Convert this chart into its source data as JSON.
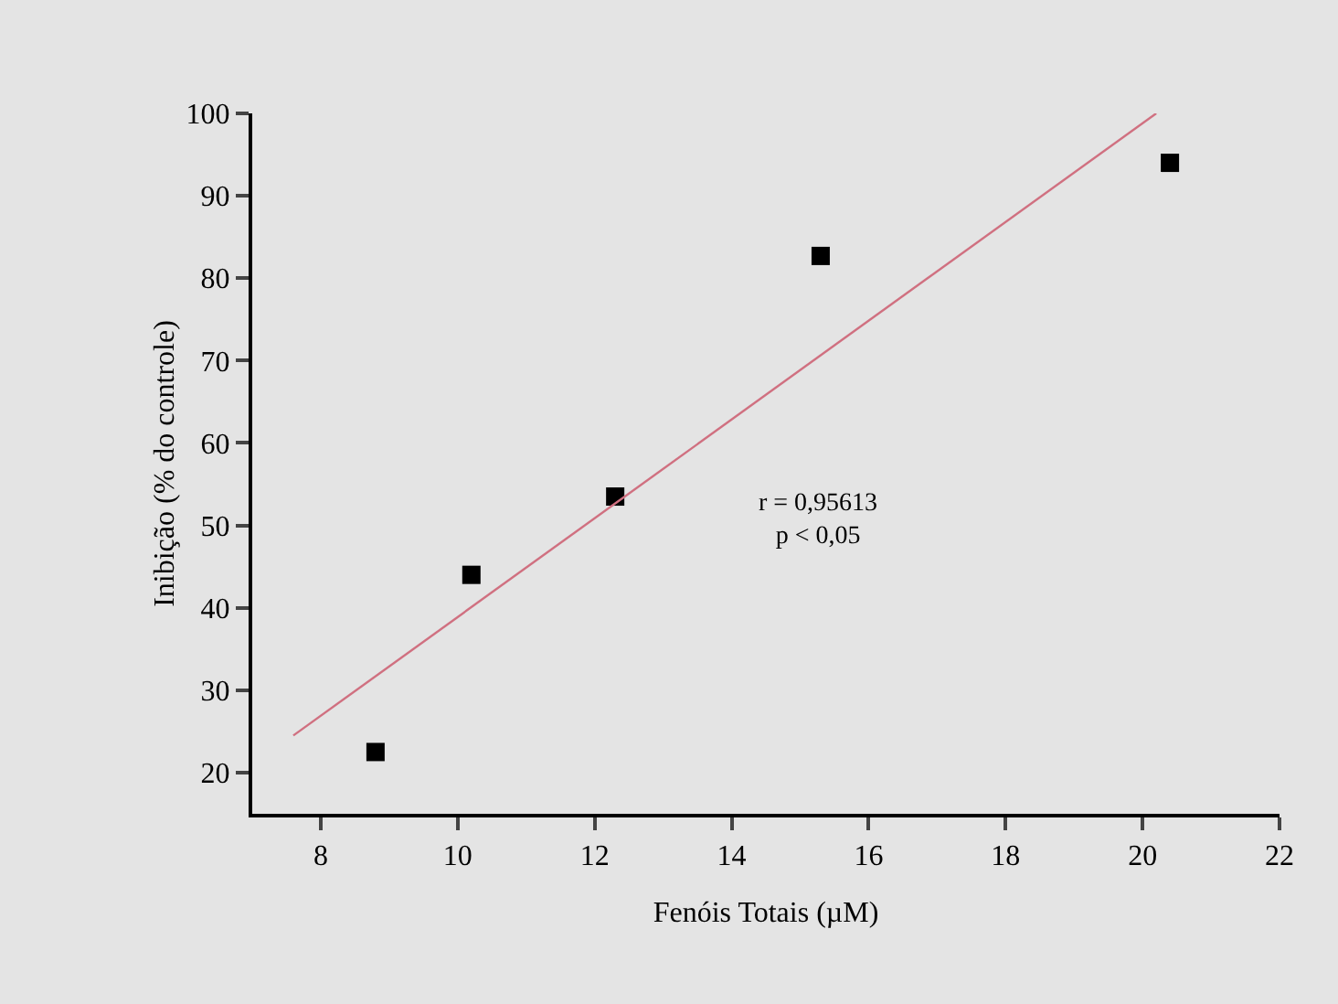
{
  "chart_data": {
    "type": "scatter",
    "xlabel": "Fenóis Totais (µM)",
    "ylabel": "Inibição (% do controle)",
    "xlim": [
      7,
      22
    ],
    "xticks": [
      8,
      10,
      12,
      14,
      16,
      18,
      20,
      22
    ],
    "ylim": [
      15,
      100
    ],
    "yticks": [
      20,
      30,
      40,
      50,
      60,
      70,
      80,
      90,
      100
    ],
    "grid": false,
    "series": [
      {
        "color": "#000000",
        "marker": "square",
        "x": [
          8.8,
          10.2,
          12.3,
          15.3,
          20.4
        ],
        "values": [
          22.5,
          44,
          53.5,
          82.7,
          94
        ]
      },
      {
        "type": "line",
        "marker": "none",
        "color": "#d07080",
        "x": [
          7.6,
          20.2
        ],
        "values": [
          24.5,
          100
        ]
      }
    ],
    "annotations": [
      "r = 0,95613\np < 0,05"
    ]
  }
}
